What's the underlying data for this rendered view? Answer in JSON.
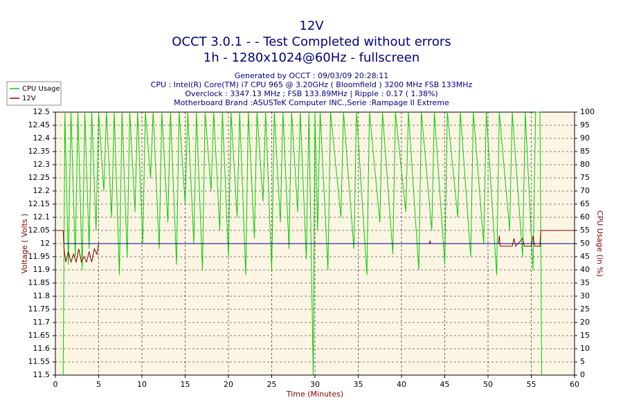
{
  "chart_data": {
    "type": "line",
    "title": [
      "12V",
      "OCCT 3.0.1 -  - Test Completed without errors",
      "1h - 1280x1024@60Hz - fullscreen"
    ],
    "subtitle": [
      "Generated by OCCT : 09/03/09 20:28:11",
      "CPU : Intel(R) Core(TM) i7 CPU 965 @ 3.20GHz ( Bloomfield ) 3200 MHz FSB 133MHz",
      "Overclock : 3347.13 MHz ; FSB 133.89MHz | Ripple : 0.17 ( 1.38%)",
      "Motherboard Brand :ASUSTeK Computer INC.,Serie :Rampage II Extreme"
    ],
    "xlabel": "Time (Minutes)",
    "ylabel": "Voltage ( Volts )",
    "y2label": "CPU Usage (in %)",
    "xlim": [
      0,
      60
    ],
    "xticks": [
      0,
      5,
      10,
      15,
      20,
      25,
      30,
      35,
      40,
      45,
      50,
      55,
      60
    ],
    "ylim": [
      11.5,
      12.5
    ],
    "yticks": [
      11.5,
      11.55,
      11.6,
      11.65,
      11.7,
      11.75,
      11.8,
      11.85,
      11.9,
      11.95,
      12,
      12.05,
      12.1,
      12.15,
      12.2,
      12.25,
      12.3,
      12.35,
      12.4,
      12.45,
      12.5
    ],
    "y2lim": [
      0,
      100
    ],
    "y2ticks": [
      0,
      5,
      10,
      15,
      20,
      25,
      30,
      35,
      40,
      45,
      50,
      55,
      60,
      65,
      70,
      75,
      80,
      85,
      90,
      95,
      100
    ],
    "grid": true,
    "legend": "top-left",
    "series": [
      {
        "name": "CPU Usage",
        "color": "#00cc00",
        "axis": "y2",
        "x": [
          0.9,
          1.1,
          1.5,
          1.8,
          2.3,
          2.6,
          3.1,
          3.4,
          3.9,
          4.2,
          4.7,
          5.0,
          5.6,
          5.9,
          6.5,
          6.8,
          7.4,
          7.7,
          8.3,
          8.6,
          9.2,
          9.5,
          10.1,
          10.4,
          11.0,
          11.3,
          12.0,
          12.3,
          13.0,
          13.3,
          14.0,
          14.3,
          15.0,
          15.3,
          16.0,
          16.3,
          17.0,
          17.3,
          18.0,
          18.3,
          19.0,
          19.3,
          20.0,
          20.3,
          21.0,
          21.3,
          22.0,
          22.3,
          23.0,
          23.3,
          24.0,
          24.3,
          25.0,
          25.3,
          26.0,
          26.3,
          27.0,
          27.3,
          28.0,
          28.3,
          29.0,
          29.3,
          29.8,
          30.0,
          30.3,
          30.6,
          31.5,
          31.8,
          33.0,
          33.3,
          34.5,
          34.8,
          36.0,
          36.3,
          37.5,
          37.8,
          39.0,
          39.3,
          40.5,
          40.8,
          42.0,
          42.3,
          43.5,
          43.8,
          45.0,
          45.3,
          46.5,
          46.8,
          48.0,
          48.3,
          49.5,
          49.8,
          51.0,
          51.3,
          52.5,
          52.8,
          54.0,
          54.3,
          55.2,
          55.5,
          56.0,
          56.2
        ],
        "values": [
          0,
          100,
          42,
          100,
          45,
          100,
          40,
          100,
          48,
          100,
          55,
          100,
          70,
          100,
          60,
          100,
          38,
          100,
          45,
          100,
          62,
          100,
          50,
          100,
          75,
          100,
          48,
          100,
          58,
          100,
          42,
          100,
          65,
          100,
          50,
          100,
          40,
          100,
          70,
          100,
          55,
          100,
          45,
          100,
          60,
          100,
          38,
          100,
          52,
          100,
          66,
          100,
          40,
          100,
          58,
          100,
          48,
          100,
          62,
          100,
          44,
          100,
          0,
          100,
          55,
          100,
          40,
          100,
          60,
          100,
          48,
          100,
          38,
          100,
          58,
          100,
          46,
          100,
          62,
          100,
          40,
          100,
          55,
          100,
          42,
          100,
          60,
          100,
          45,
          100,
          50,
          100,
          38,
          100,
          55,
          100,
          45,
          100,
          40,
          100,
          100,
          0
        ]
      },
      {
        "name": "12V",
        "color": "#800000",
        "x": [
          0,
          0.9,
          1.0,
          1.2,
          1.5,
          1.8,
          2.1,
          2.4,
          2.7,
          3.0,
          3.3,
          3.6,
          3.9,
          4.2,
          4.5,
          4.8,
          5,
          43.2,
          43.3,
          43.4,
          51.2,
          51.3,
          51.4,
          52.8,
          53,
          53.2,
          54,
          54.2,
          55,
          55.2,
          55.4,
          56,
          56.1,
          60
        ],
        "values": [
          12.05,
          12.05,
          11.98,
          11.93,
          11.97,
          11.93,
          11.96,
          11.93,
          11.98,
          11.93,
          11.95,
          11.93,
          11.97,
          11.93,
          11.98,
          11.96,
          12,
          12,
          12.01,
          12,
          12,
          12.03,
          11.99,
          11.99,
          12.02,
          11.99,
          12.02,
          11.99,
          11.99,
          12.03,
          11.99,
          11.99,
          12.05,
          12.05
        ]
      },
      {
        "color": "#000080",
        "x": [
          1,
          60
        ],
        "values": [
          12,
          12
        ]
      }
    ]
  }
}
